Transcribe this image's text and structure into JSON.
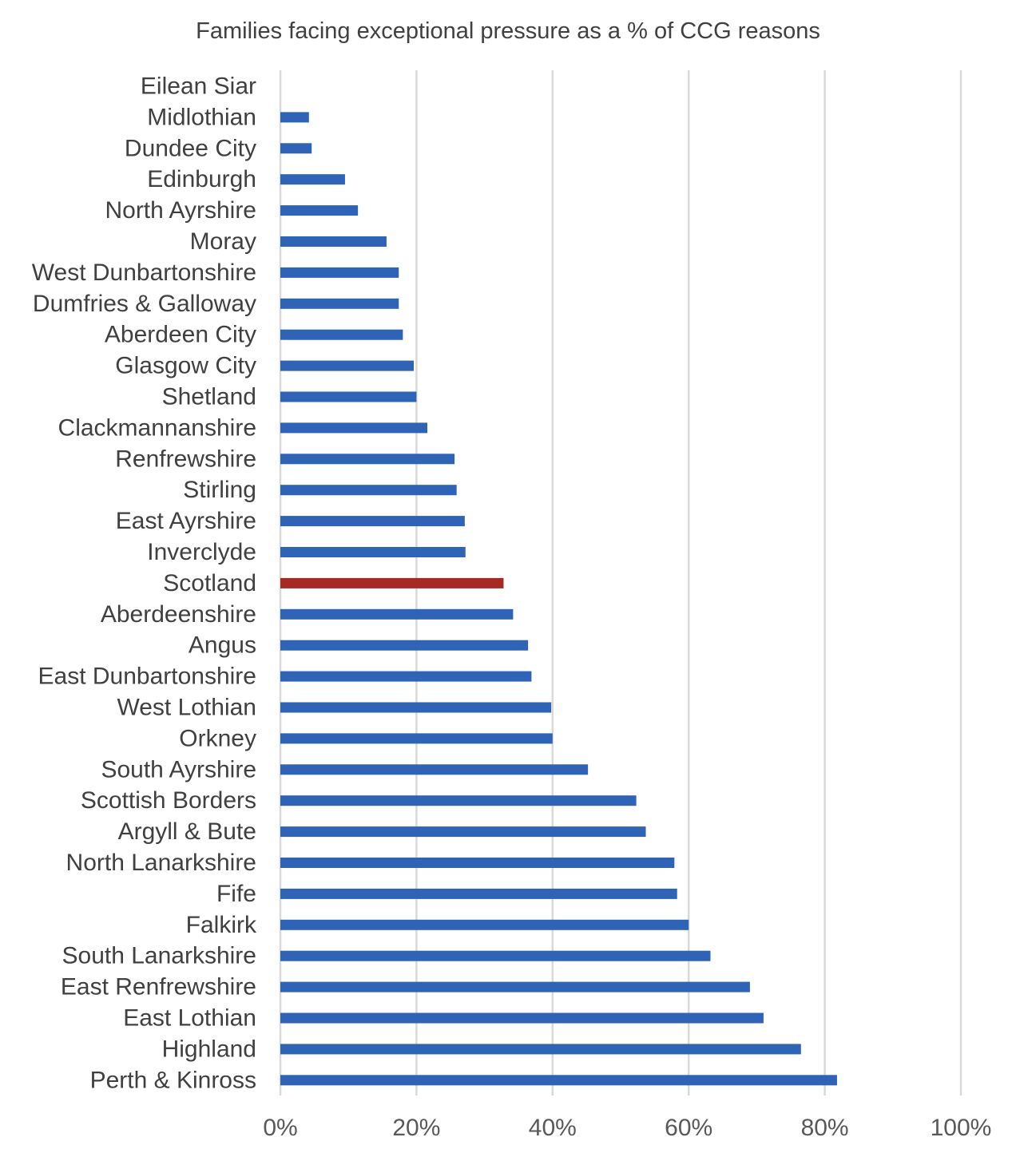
{
  "chart_data": {
    "type": "bar",
    "orientation": "horizontal",
    "title": "Families facing exceptional pressure as a % of CCG reasons",
    "xlabel": "",
    "ylabel": "",
    "xlim": [
      0,
      100
    ],
    "unit": "%",
    "ticks": [
      "0%",
      "20%",
      "40%",
      "60%",
      "80%",
      "100%"
    ],
    "tick_values": [
      0,
      20,
      40,
      60,
      80,
      100
    ],
    "grid": true,
    "legend": "none",
    "colors": {
      "default": "#2e63b6",
      "highlight": "#a52a24",
      "grid": "#d9d9d9",
      "text": "#404040"
    },
    "highlight_category": "Scotland",
    "categories": [
      "Eilean Siar",
      "Midlothian",
      "Dundee City",
      "Edinburgh",
      "North Ayrshire",
      "Moray",
      "West Dunbartonshire",
      "Dumfries & Galloway",
      "Aberdeen City",
      "Glasgow City",
      "Shetland",
      "Clackmannanshire",
      "Renfrewshire",
      "Stirling",
      "East Ayrshire",
      "Inverclyde",
      "Scotland",
      "Aberdeenshire",
      "Angus",
      "East Dunbartonshire",
      "West Lothian",
      "Orkney",
      "South Ayrshire",
      "Scottish Borders",
      "Argyll & Bute",
      "North Lanarkshire",
      "Fife",
      "Falkirk",
      "South Lanarkshire",
      "East Renfrewshire",
      "East Lothian",
      "Highland",
      "Perth & Kinross"
    ],
    "values": [
      0,
      4.2,
      4.6,
      9.5,
      11.4,
      15.6,
      17.4,
      17.4,
      18.0,
      19.6,
      20.0,
      21.6,
      25.6,
      25.9,
      27.1,
      27.2,
      32.8,
      34.2,
      36.4,
      36.9,
      39.8,
      40.0,
      45.2,
      52.3,
      53.7,
      57.9,
      58.3,
      60.0,
      63.2,
      69.0,
      71.0,
      76.5,
      81.8
    ]
  }
}
